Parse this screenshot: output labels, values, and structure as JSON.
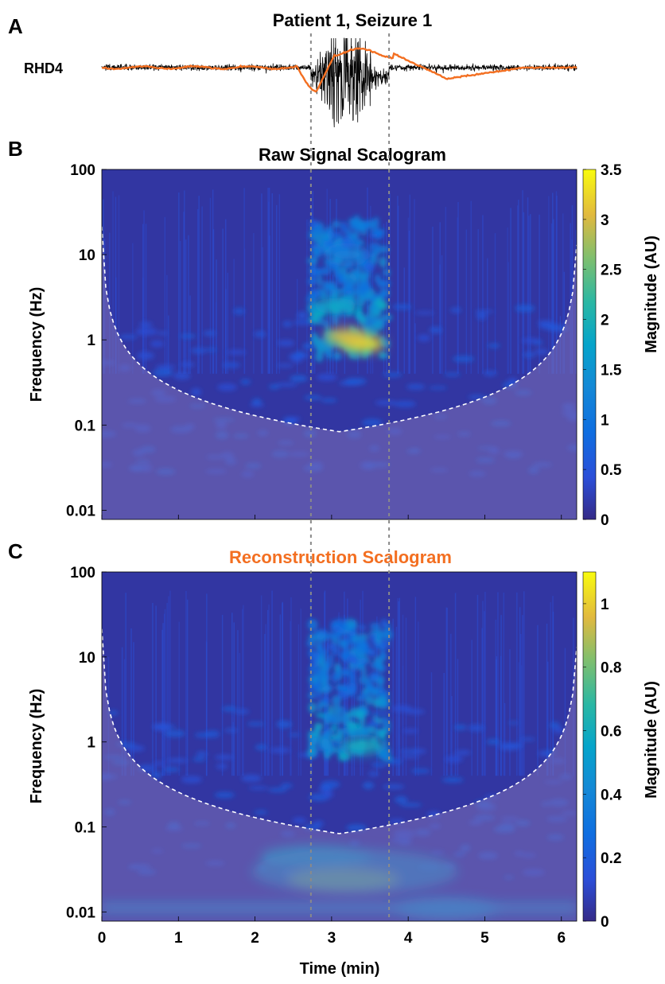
{
  "figure": {
    "panel_letters": [
      "A",
      "B",
      "C"
    ],
    "colors": {
      "raw_trace": "#000000",
      "reconstruction_trace": "#f36f21",
      "title_c": "#f36f21",
      "cone_of_influence": "#ffffff",
      "seizure_markers": "#8a8a8a",
      "shade": "#7d6fb7",
      "parula_low": "#352a87",
      "parula_high": "#f9fb0e"
    }
  },
  "chart_data": [
    {
      "type": "line",
      "panel": "A",
      "title": "Patient 1, Seizure 1",
      "channel_label": "RHD4",
      "series": [
        {
          "name": "",
          "role": "raw-signal"
        },
        {
          "name": "",
          "role": "reconstruction"
        }
      ],
      "x_range_min": [
        0,
        6.2
      ],
      "seizure_window_min": [
        2.73,
        3.75
      ]
    },
    {
      "type": "heatmap",
      "panel": "B",
      "title": "Raw Signal Scalogram",
      "xlabel": "",
      "ylabel": "Frequency (Hz)",
      "y_scale": "log",
      "xlim": [
        0,
        6.2
      ],
      "ylim": [
        0.0078,
        100
      ],
      "x_ticks": [
        0,
        1,
        2,
        3,
        4,
        5,
        6
      ],
      "y_ticks": [
        100,
        10,
        1,
        0.1,
        0.01
      ],
      "y_tick_labels": [
        "100",
        "10",
        "1",
        "0.1",
        "0.01"
      ],
      "colorbar": {
        "label": "Magnitude (AU)",
        "range": [
          0,
          3.5
        ],
        "ticks": [
          0,
          0.5,
          1,
          1.5,
          2,
          2.5,
          3,
          3.5
        ],
        "tick_labels": [
          "0",
          "0.5",
          "1",
          "1.5",
          "2",
          "2.5",
          "3",
          "3.5"
        ]
      },
      "hotspots": [
        {
          "t": 3.4,
          "f": 0.9,
          "magnitude": 3.3
        },
        {
          "t": 3.2,
          "f": 1.1,
          "magnitude": 3.0
        },
        {
          "t": 3.05,
          "f": 2.5,
          "magnitude": 1.8
        },
        {
          "t": 3.2,
          "f": 10,
          "magnitude": 1.2
        }
      ]
    },
    {
      "type": "heatmap",
      "panel": "C",
      "title": "Reconstruction Scalogram",
      "xlabel": "Time (min)",
      "ylabel": "Frequency (Hz)",
      "y_scale": "log",
      "xlim": [
        0,
        6.2
      ],
      "ylim": [
        0.0078,
        100
      ],
      "x_ticks": [
        0,
        1,
        2,
        3,
        4,
        5,
        6
      ],
      "x_tick_labels": [
        "0",
        "1",
        "2",
        "3",
        "4",
        "5",
        "6"
      ],
      "y_ticks": [
        100,
        10,
        1,
        0.1,
        0.01
      ],
      "y_tick_labels": [
        "100",
        "10",
        "1",
        "0.1",
        "0.01"
      ],
      "colorbar": {
        "label": "Magnitude (AU)",
        "range": [
          0,
          1.1
        ],
        "ticks": [
          0,
          0.2,
          0.4,
          0.6,
          0.8,
          1
        ],
        "tick_labels": [
          "0",
          "0.2",
          "0.4",
          "0.6",
          "0.8",
          "1"
        ]
      },
      "hotspots": [
        {
          "t": 3.15,
          "f": 0.024,
          "magnitude": 1.05
        },
        {
          "t": 3.4,
          "f": 0.9,
          "magnitude": 0.6
        },
        {
          "t": 2.8,
          "f": 0.045,
          "magnitude": 0.55
        },
        {
          "t": 4.5,
          "f": 0.011,
          "magnitude": 0.45
        }
      ]
    }
  ]
}
